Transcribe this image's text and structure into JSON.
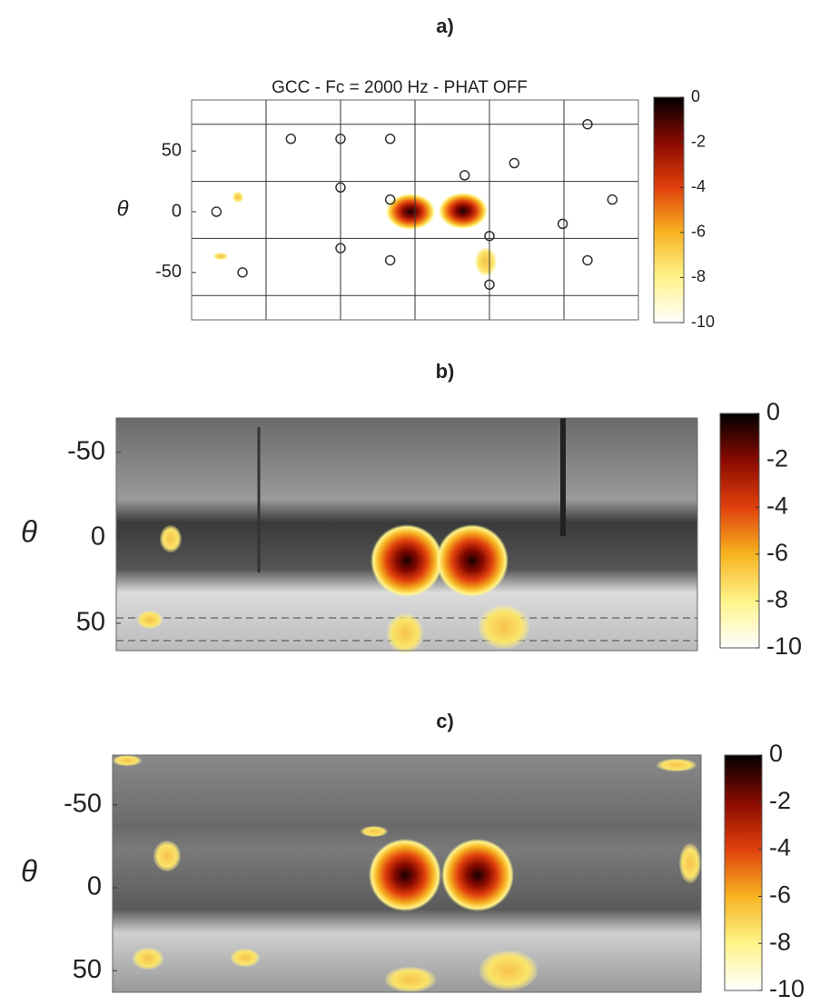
{
  "chart_data": [
    {
      "type": "scatter",
      "title": "a)",
      "subtitle": "GCC - Fc = 2000 Hz - PHAT OFF",
      "ylabel": "θ",
      "x": [
        -100,
        -60,
        -20,
        139,
        80,
        40,
        -60,
        -20,
        159,
        -160,
        119,
        60,
        -60,
        -20,
        139,
        -139,
        60
      ],
      "y": [
        60,
        60,
        60,
        72,
        40,
        30,
        20,
        10,
        10,
        0,
        -10,
        -20,
        -30,
        -40,
        -40,
        -50,
        -60
      ],
      "xlim": [
        -180,
        180
      ],
      "xticks": [
        -120,
        -60,
        0,
        60,
        120
      ],
      "ylim": [
        -89,
        92
      ],
      "yticks": [
        50,
        0,
        -50
      ],
      "ygrid": [
        -69,
        -22,
        25,
        72
      ],
      "grid": true,
      "clim": [
        -10,
        0
      ],
      "cticks": [
        0,
        -2,
        -4,
        -6,
        -8,
        -10
      ],
      "colormap": [
        "#ffffff",
        "#fff48a",
        "#f7b321",
        "#e0400c",
        "#8a0a00",
        "#000000"
      ]
    },
    {
      "type": "heatmap",
      "title": "b)",
      "ylabel": "θ",
      "ylim": [
        66,
        -70
      ],
      "yticks": [
        -50,
        0,
        50
      ],
      "clim": [
        -10,
        0
      ],
      "cticks": [
        0,
        -2,
        -4,
        -6,
        -8,
        -10
      ],
      "colormap": [
        "#ffffff",
        "#fff48a",
        "#f7b321",
        "#e0400c",
        "#8a0a00",
        "#000000"
      ]
    },
    {
      "type": "heatmap",
      "title": "c)",
      "ylabel": "θ",
      "ylim": [
        63,
        -80
      ],
      "yticks": [
        -50,
        0,
        50
      ],
      "clim": [
        -10,
        0
      ],
      "cticks": [
        0,
        -2,
        -4,
        -6,
        -8,
        -10
      ],
      "colormap": [
        "#ffffff",
        "#fff48a",
        "#f7b321",
        "#e0400c",
        "#8a0a00",
        "#000000"
      ]
    }
  ]
}
